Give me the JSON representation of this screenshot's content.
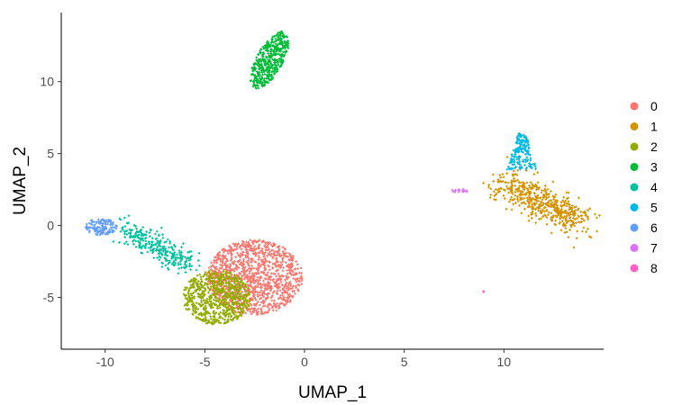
{
  "chart_data": {
    "type": "scatter",
    "title": "",
    "xlabel": "UMAP_1",
    "ylabel": "UMAP_2",
    "xlim": [
      -12.2,
      15.0
    ],
    "ylim": [
      -8.6,
      14.8
    ],
    "x_ticks": [
      -10,
      -5,
      0,
      5,
      10
    ],
    "y_ticks": [
      -5,
      0,
      5,
      10
    ],
    "x_tick_labels": [
      "-10",
      "-5",
      "0",
      "5",
      "10"
    ],
    "y_tick_labels": [
      "-5",
      "0",
      "5",
      "10"
    ],
    "grid": false,
    "legend_position": "right",
    "point_shape": "small cross",
    "series": [
      {
        "name": "0",
        "color": "#F8766D",
        "approx_count": 1150,
        "region": {
          "x_range": [
            -5.0,
            0.0
          ],
          "y_range": [
            -6.4,
            -1.0
          ],
          "center": [
            -2.6,
            -3.6
          ]
        }
      },
      {
        "name": "1",
        "color": "#D39200",
        "approx_count": 520,
        "region": {
          "x_range": [
            8.5,
            13.8
          ],
          "y_range": [
            -0.4,
            4.0
          ],
          "center": [
            11.0,
            1.5
          ]
        }
      },
      {
        "name": "2",
        "color": "#93AA00",
        "approx_count": 700,
        "region": {
          "x_range": [
            -6.0,
            -2.4
          ],
          "y_range": [
            -7.5,
            -2.5
          ],
          "center": [
            -4.5,
            -5.0
          ]
        }
      },
      {
        "name": "3",
        "color": "#00BA38",
        "approx_count": 420,
        "region": {
          "x_range": [
            -2.6,
            -0.8
          ],
          "y_range": [
            9.3,
            13.6
          ],
          "center": [
            -1.8,
            11.5
          ]
        }
      },
      {
        "name": "4",
        "color": "#00C19F",
        "approx_count": 300,
        "region": {
          "x_range": [
            -9.6,
            -5.6
          ],
          "y_range": [
            -3.2,
            0.3
          ],
          "center": [
            -7.5,
            -1.4
          ]
        }
      },
      {
        "name": "5",
        "color": "#00B9E3",
        "approx_count": 170,
        "region": {
          "x_range": [
            10.2,
            11.7
          ],
          "y_range": [
            3.8,
            6.5
          ],
          "center": [
            10.9,
            5.2
          ]
        }
      },
      {
        "name": "6",
        "color": "#619CFF",
        "approx_count": 120,
        "region": {
          "x_range": [
            -11.0,
            -9.4
          ],
          "y_range": [
            -0.8,
            0.7
          ],
          "center": [
            -10.2,
            -0.1
          ]
        }
      },
      {
        "name": "7",
        "color": "#DB72FB",
        "approx_count": 20,
        "region": {
          "x_range": [
            7.4,
            8.2
          ],
          "y_range": [
            2.2,
            2.6
          ],
          "center": [
            7.8,
            2.4
          ]
        }
      },
      {
        "name": "8",
        "color": "#FF61C3",
        "approx_count": 3,
        "region": {
          "x_range": [
            8.9,
            9.1
          ],
          "y_range": [
            -4.7,
            -4.5
          ],
          "center": [
            9.0,
            -4.6
          ]
        }
      }
    ]
  }
}
